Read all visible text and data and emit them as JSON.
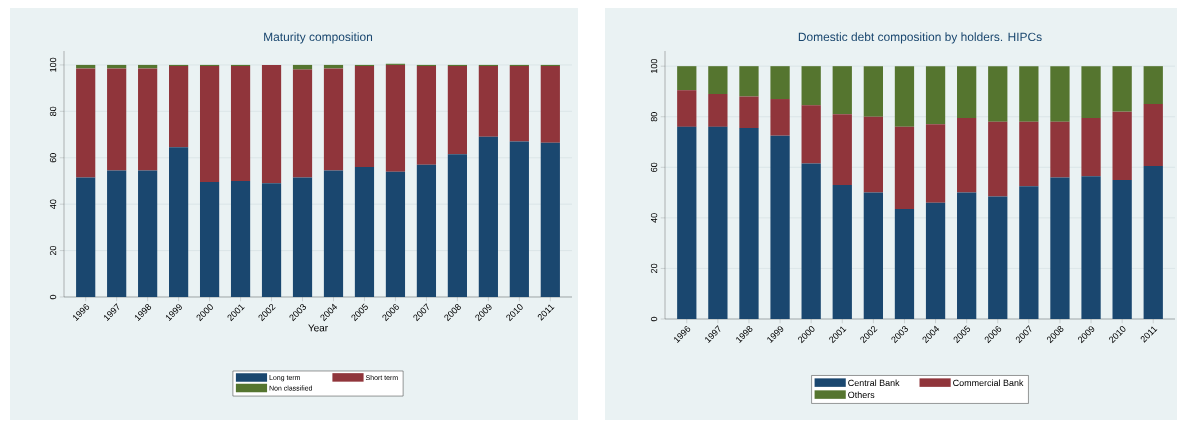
{
  "chart_data": [
    {
      "type": "bar",
      "title": "Maturity composition",
      "xlabel": "Year",
      "stacked": true,
      "grid": "y",
      "legend": "bottom",
      "categories": [
        "1996",
        "1997",
        "1998",
        "1999",
        "2000",
        "2001",
        "2002",
        "2003",
        "2004",
        "2005",
        "2006",
        "2007",
        "2008",
        "2009",
        "2010",
        "2011"
      ],
      "ylim": [
        0,
        106
      ],
      "yticks": [
        0,
        20,
        40,
        60,
        80,
        100
      ],
      "series": [
        {
          "name": "Long term",
          "color": "#1a476f",
          "values": [
            51.5,
            54.5,
            54.5,
            64.5,
            49.5,
            50,
            49,
            51.5,
            54.5,
            56,
            54,
            57,
            61.5,
            69,
            67,
            66.5
          ]
        },
        {
          "name": "Short term",
          "color": "#90353b",
          "values": [
            47,
            44,
            44,
            35,
            50,
            49.5,
            51,
            46.5,
            44,
            43.5,
            46,
            42.5,
            38,
            30.5,
            32.5,
            33
          ]
        },
        {
          "name": "Non classified",
          "color": "#55752f",
          "values": [
            1.5,
            1.5,
            1.5,
            0.5,
            0.5,
            0.5,
            0,
            2,
            1.5,
            0.5,
            0.5,
            0.5,
            0.5,
            0.5,
            0.5,
            0.5
          ]
        }
      ]
    },
    {
      "type": "bar",
      "title": "Domestic debt composition by holders. HIPCs",
      "stacked": true,
      "grid": "y",
      "legend": "bottom",
      "categories": [
        "1996",
        "1997",
        "1998",
        "1999",
        "2000",
        "2001",
        "2002",
        "2003",
        "2004",
        "2005",
        "2006",
        "2007",
        "2008",
        "2009",
        "2010",
        "2011"
      ],
      "ylim": [
        0,
        106
      ],
      "yticks": [
        0,
        20,
        40,
        60,
        80,
        100
      ],
      "series": [
        {
          "name": "Central Bank",
          "color": "#1a476f",
          "values": [
            76,
            76,
            75.5,
            72.5,
            61.5,
            53,
            50,
            43.5,
            46,
            50,
            48.5,
            52.5,
            56,
            56.5,
            55,
            60.5
          ]
        },
        {
          "name": "Commercial Bank",
          "color": "#90353b",
          "values": [
            14.5,
            13,
            12.5,
            14.5,
            23,
            28,
            30,
            32.5,
            31,
            29.5,
            29.5,
            25.5,
            22,
            23,
            27,
            24.5
          ]
        },
        {
          "name": "Others",
          "color": "#55752f",
          "values": [
            9.5,
            11,
            12,
            13,
            15.5,
            19,
            20,
            24,
            23,
            20.5,
            22,
            22,
            22,
            20.5,
            18,
            15
          ]
        }
      ]
    }
  ]
}
